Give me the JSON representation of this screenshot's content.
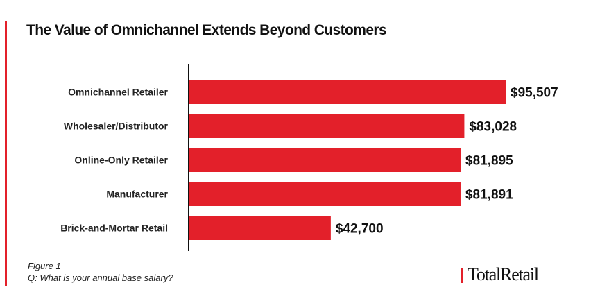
{
  "chart_data": {
    "type": "bar",
    "orientation": "horizontal",
    "title": "The Value of Omnichannel Extends Beyond Customers",
    "categories": [
      "Omnichannel Retailer",
      "Wholesaler/Distributor",
      "Online-Only Retailer",
      "Manufacturer",
      "Brick-and-Mortar Retail"
    ],
    "values": [
      95507,
      83028,
      81895,
      81891,
      42700
    ],
    "data_labels": [
      "$95,507",
      "$83,028",
      "$81,895",
      "$81,891",
      "$42,700"
    ],
    "bar_color": "#e3202a",
    "grid": false,
    "legend": "none"
  },
  "footer": {
    "figure": "Figure 1",
    "question": "Q: What is your annual base salary?",
    "logo": "TotalRetail"
  },
  "colors": {
    "accent": "#e3202a"
  }
}
